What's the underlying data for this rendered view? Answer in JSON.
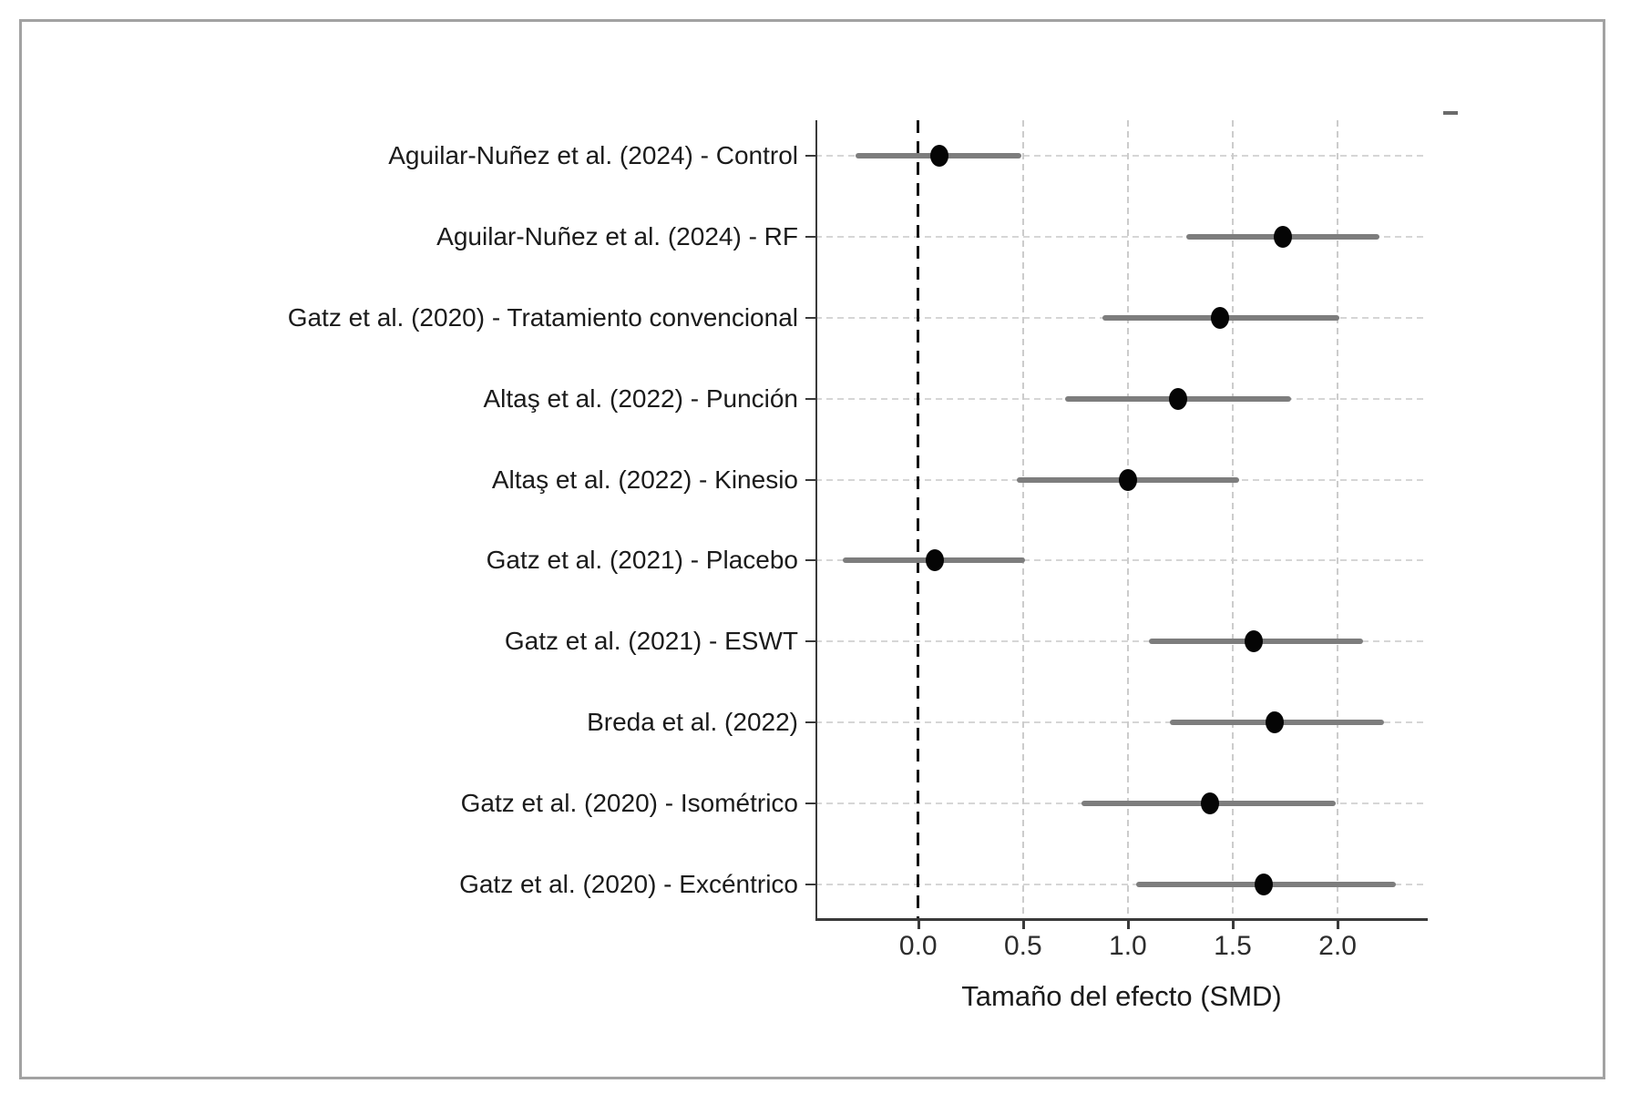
{
  "chart_data": {
    "type": "scatter",
    "subtype": "forest-plot",
    "title": "",
    "xlabel": "Tamaño del efecto (SMD)",
    "ylabel": "",
    "xlim": [
      -0.49,
      2.43
    ],
    "xticks": [
      0.0,
      0.5,
      1.0,
      1.5,
      2.0
    ],
    "xtick_labels": [
      "0.0",
      "0.5",
      "1.0",
      "1.5",
      "2.0"
    ],
    "reference_line_x": 0.0,
    "grid": true,
    "legend": false,
    "studies": [
      {
        "label": "Aguilar-Nuñez et al. (2024) - Control",
        "value": 0.1,
        "ci_low": -0.3,
        "ci_high": 0.49
      },
      {
        "label": "Aguilar-Nuñez et al. (2024) - RF",
        "value": 1.74,
        "ci_low": 1.28,
        "ci_high": 2.2
      },
      {
        "label": "Gatz et al. (2020) - Tratamiento convencional",
        "value": 1.44,
        "ci_low": 0.88,
        "ci_high": 2.01
      },
      {
        "label": "Altaş et al. (2022) - Punción",
        "value": 1.24,
        "ci_low": 0.7,
        "ci_high": 1.78
      },
      {
        "label": "Altaş et al. (2022) - Kinesio",
        "value": 1.0,
        "ci_low": 0.47,
        "ci_high": 1.53
      },
      {
        "label": "Gatz et al. (2021) - Placebo",
        "value": 0.08,
        "ci_low": -0.36,
        "ci_high": 0.51
      },
      {
        "label": "Gatz et al. (2021) - ESWT",
        "value": 1.6,
        "ci_low": 1.1,
        "ci_high": 2.12
      },
      {
        "label": "Breda et al. (2022)",
        "value": 1.7,
        "ci_low": 1.2,
        "ci_high": 2.22
      },
      {
        "label": "Gatz et al. (2020) - Isométrico",
        "value": 1.39,
        "ci_low": 0.78,
        "ci_high": 1.99
      },
      {
        "label": "Gatz et al. (2020) - Excéntrico",
        "value": 1.65,
        "ci_low": 1.04,
        "ci_high": 2.28
      }
    ],
    "colors": {
      "point": "#050505",
      "ci_bar": "#7d7d7d",
      "reference_line": "#141414",
      "gridline": "#d2d2d2",
      "spine": "#3a3a3a",
      "frame_border": "#a2a2a2",
      "text": "#1b1b1b"
    }
  }
}
